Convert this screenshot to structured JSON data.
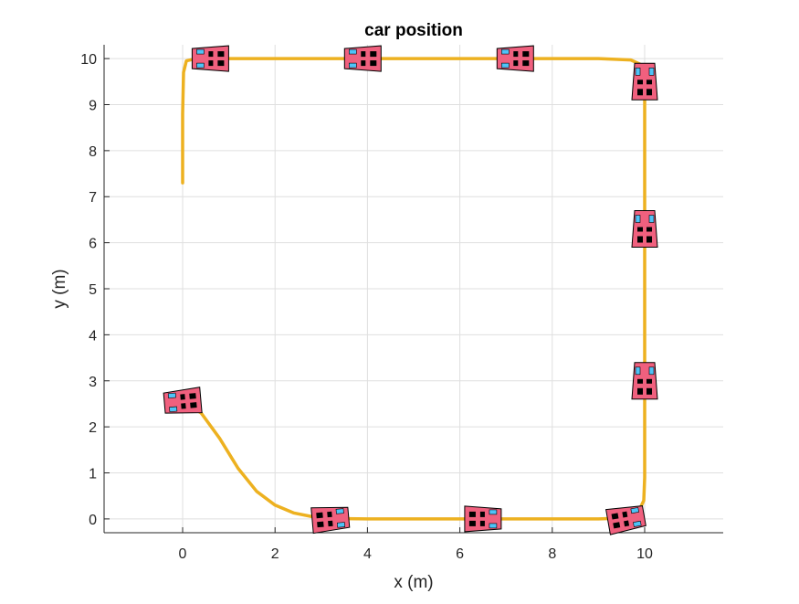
{
  "chart_data": {
    "type": "line",
    "title": "car position",
    "xlabel": "x (m)",
    "ylabel": "y (m)",
    "xlim": [
      -1.7,
      11.7
    ],
    "ylim": [
      -0.3,
      10.3
    ],
    "grid": true,
    "x_ticks": [
      "0",
      "2",
      "4",
      "6",
      "8",
      "10"
    ],
    "y_ticks": [
      "0",
      "1",
      "2",
      "3",
      "4",
      "5",
      "6",
      "7",
      "8",
      "9",
      "10"
    ],
    "series": [
      {
        "color": "#EDB120",
        "x": [
          0,
          0.4,
          0.8,
          1.2,
          1.6,
          2.0,
          2.4,
          2.8,
          3.2,
          4,
          5,
          6,
          7,
          8,
          9,
          9.6,
          9.85,
          9.98,
          10,
          10,
          10,
          10,
          10,
          10,
          10,
          10,
          10,
          10,
          10,
          9.9,
          9.7,
          9,
          8,
          7,
          6,
          5,
          4,
          3,
          2,
          1,
          0.3,
          0.08,
          0.02,
          0,
          0
        ],
        "y": [
          2.55,
          2.3,
          1.75,
          1.1,
          0.6,
          0.3,
          0.13,
          0.05,
          0.01,
          0,
          0,
          0,
          0,
          0,
          0,
          0.02,
          0.12,
          0.4,
          0.9,
          2,
          3,
          4,
          5,
          6,
          7,
          8,
          9,
          9.4,
          9.65,
          9.88,
          9.97,
          10,
          10,
          10,
          10,
          10,
          10,
          10,
          10,
          10,
          10,
          9.95,
          9.7,
          8.8,
          7.3
        ]
      }
    ],
    "car_markers": [
      {
        "x": 0,
        "y": 2.55,
        "heading": 185
      },
      {
        "x": 3.2,
        "y": 0,
        "heading": 5
      },
      {
        "x": 6.5,
        "y": 0,
        "heading": 0
      },
      {
        "x": 9.6,
        "y": 0,
        "heading": 10
      },
      {
        "x": 10,
        "y": 3,
        "heading": 90
      },
      {
        "x": 10,
        "y": 6.3,
        "heading": 90
      },
      {
        "x": 10,
        "y": 9.5,
        "heading": 90
      },
      {
        "x": 7.2,
        "y": 10,
        "heading": 180
      },
      {
        "x": 3.9,
        "y": 10,
        "heading": 180
      },
      {
        "x": 0.6,
        "y": 10,
        "heading": 180
      }
    ],
    "colors": {
      "car_body": "#F0607E",
      "window": "#4FC3F7",
      "wheel": "#000000",
      "grid": "#DFDFDF",
      "axis": "#262626"
    }
  }
}
